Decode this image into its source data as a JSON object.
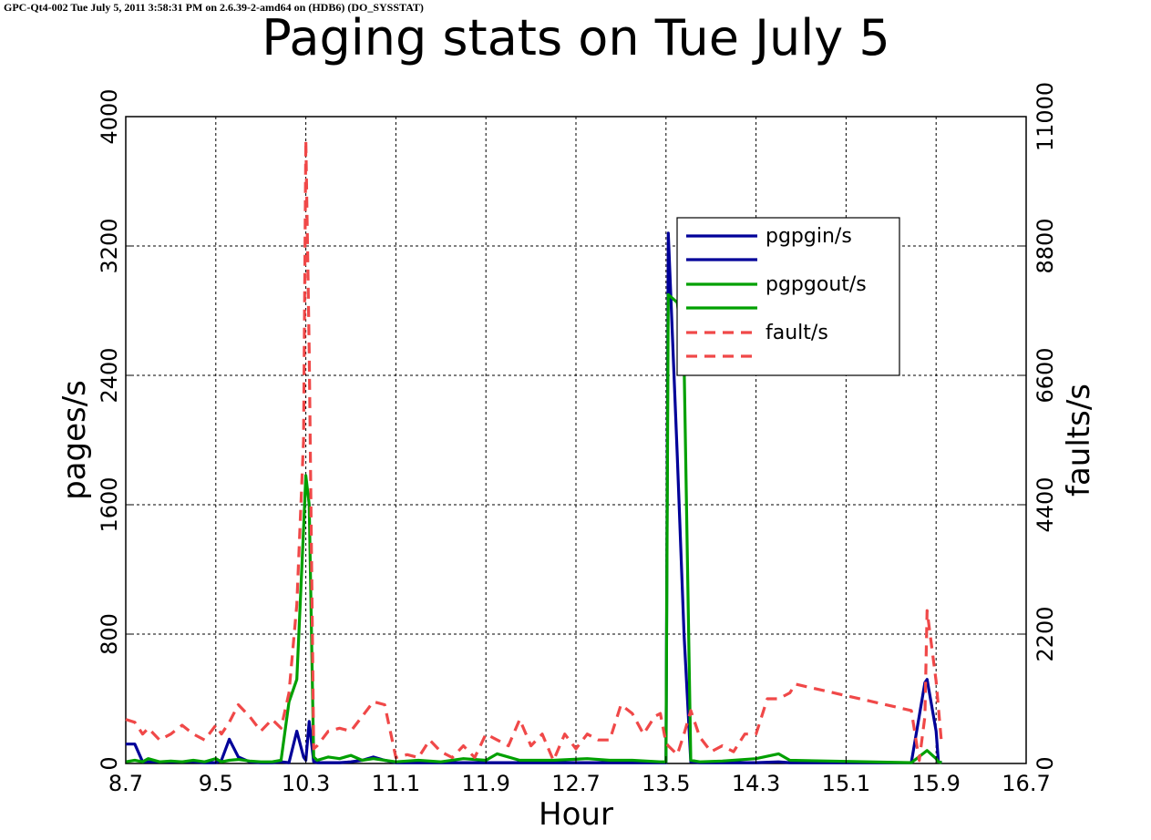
{
  "header": "GPC-Qt4-002 Tue July 5, 2011 3:58:31 PM on 2.6.39-2-amd64 on (HDB6) (DO_SYSSTAT)",
  "chart_data": {
    "type": "line",
    "title": "Paging stats on Tue July 5",
    "xlabel": "Hour",
    "ylabel": "pages/s",
    "y2label": "faults/s",
    "xlim": [
      8.7,
      16.7
    ],
    "ylim": [
      0,
      4000
    ],
    "y2lim": [
      0,
      11000
    ],
    "xticks": [
      "8.7",
      "9.5",
      "10.3",
      "11.1",
      "11.9",
      "12.7",
      "13.5",
      "14.3",
      "15.1",
      "15.9",
      "16.7"
    ],
    "yticks": [
      "0",
      "800",
      "1600",
      "2400",
      "3200",
      "4000"
    ],
    "y2ticks": [
      "0",
      "2200",
      "4400",
      "6600",
      "8800",
      "11000"
    ],
    "grid": true,
    "legend_position": "upper-right",
    "colors": {
      "pgpgin": "#000099",
      "pgpgout": "#00a000",
      "fault": "#f04848"
    },
    "series": [
      {
        "name": "pgpgin/s",
        "axis": "left",
        "style": "solid",
        "color": "#000099",
        "x": [
          8.7,
          8.78,
          8.85,
          8.9,
          9.0,
          9.1,
          9.2,
          9.3,
          9.4,
          9.5,
          9.55,
          9.62,
          9.7,
          9.8,
          9.9,
          10.0,
          10.08,
          10.15,
          10.22,
          10.28,
          10.3,
          10.33,
          10.37,
          10.4,
          10.5,
          10.6,
          10.7,
          10.8,
          10.9,
          11.0,
          11.1,
          11.5,
          12.0,
          12.5,
          13.0,
          13.4,
          13.5,
          13.52,
          13.6,
          13.66,
          13.72,
          13.8,
          14.0,
          14.3,
          14.5,
          14.6,
          15.68,
          15.8,
          15.82,
          15.9,
          15.92,
          15.95
        ],
        "y": [
          120,
          120,
          10,
          10,
          10,
          10,
          10,
          10,
          5,
          5,
          20,
          150,
          40,
          10,
          5,
          5,
          10,
          5,
          200,
          40,
          20,
          260,
          10,
          5,
          5,
          5,
          10,
          20,
          40,
          20,
          5,
          5,
          5,
          5,
          5,
          5,
          5,
          3280,
          1900,
          800,
          10,
          5,
          5,
          5,
          10,
          5,
          5,
          500,
          520,
          200,
          10,
          5
        ]
      },
      {
        "name": "pgpgout/s",
        "axis": "left",
        "style": "solid",
        "color": "#00a000",
        "x": [
          8.7,
          8.78,
          8.85,
          8.9,
          9.0,
          9.1,
          9.2,
          9.3,
          9.4,
          9.5,
          9.55,
          9.62,
          9.7,
          9.8,
          9.9,
          10.0,
          10.08,
          10.15,
          10.22,
          10.28,
          10.3,
          10.33,
          10.37,
          10.4,
          10.5,
          10.6,
          10.7,
          10.8,
          10.9,
          11.0,
          11.1,
          11.3,
          11.5,
          11.7,
          11.9,
          12.0,
          12.2,
          12.5,
          12.8,
          13.0,
          13.2,
          13.45,
          13.5,
          13.52,
          13.6,
          13.66,
          13.72,
          13.8,
          14.0,
          14.3,
          14.5,
          14.6,
          15.68,
          15.8,
          15.82,
          15.9,
          15.92,
          15.95
        ],
        "y": [
          10,
          20,
          10,
          30,
          10,
          15,
          10,
          20,
          10,
          30,
          10,
          20,
          25,
          15,
          10,
          10,
          20,
          380,
          520,
          1450,
          1780,
          1600,
          40,
          20,
          40,
          30,
          50,
          20,
          30,
          20,
          10,
          20,
          10,
          30,
          20,
          60,
          20,
          20,
          30,
          20,
          20,
          10,
          10,
          2900,
          2850,
          2500,
          20,
          10,
          15,
          30,
          60,
          20,
          5,
          70,
          80,
          30,
          10,
          5
        ]
      },
      {
        "name": "fault/s",
        "axis": "right",
        "style": "dashed",
        "color": "#f04848",
        "x": [
          8.7,
          8.78,
          8.85,
          8.9,
          9.0,
          9.1,
          9.2,
          9.3,
          9.4,
          9.5,
          9.55,
          9.62,
          9.7,
          9.8,
          9.9,
          10.0,
          10.08,
          10.15,
          10.22,
          10.28,
          10.3,
          10.33,
          10.37,
          10.4,
          10.5,
          10.6,
          10.7,
          10.8,
          10.9,
          11.0,
          11.1,
          11.2,
          11.3,
          11.4,
          11.5,
          11.6,
          11.7,
          11.8,
          11.9,
          12.0,
          12.1,
          12.2,
          12.3,
          12.4,
          12.5,
          12.6,
          12.7,
          12.8,
          12.9,
          13.0,
          13.1,
          13.2,
          13.3,
          13.4,
          13.45,
          13.5,
          13.52,
          13.6,
          13.66,
          13.72,
          13.8,
          13.9,
          14.0,
          14.1,
          14.2,
          14.3,
          14.4,
          14.5,
          14.6,
          14.65,
          15.68,
          15.75,
          15.8,
          15.82,
          15.9,
          15.95
        ],
        "y": [
          750,
          700,
          500,
          600,
          400,
          500,
          650,
          500,
          400,
          650,
          500,
          700,
          1000,
          800,
          550,
          750,
          600,
          1200,
          2700,
          5500,
          10600,
          7000,
          250,
          300,
          550,
          600,
          550,
          800,
          1050,
          1000,
          100,
          150,
          100,
          400,
          200,
          100,
          300,
          100,
          500,
          400,
          300,
          750,
          300,
          500,
          50,
          500,
          250,
          500,
          400,
          400,
          1000,
          850,
          500,
          800,
          850,
          350,
          300,
          150,
          500,
          900,
          450,
          200,
          300,
          200,
          500,
          500,
          1100,
          1100,
          1200,
          1350,
          900,
          50,
          800,
          2600,
          1400,
          300
        ]
      }
    ]
  }
}
